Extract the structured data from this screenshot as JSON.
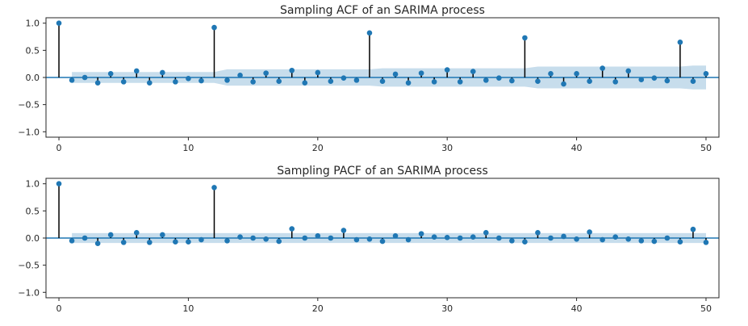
{
  "chart_data": [
    {
      "type": "stem",
      "title": "Sampling ACF of an SARIMA process",
      "xlabel": "",
      "ylabel": "",
      "xlim": [
        -1,
        51
      ],
      "ylim": [
        -1.1,
        1.1
      ],
      "xticks": [
        0,
        10,
        20,
        30,
        40,
        50
      ],
      "yticks": [
        1.0,
        0.5,
        0.0,
        -0.5,
        -1.0
      ],
      "ytick_labels": [
        "1.0",
        "0.5",
        "0.0",
        "−0.5",
        "−1.0"
      ],
      "x": [
        0,
        1,
        2,
        3,
        4,
        5,
        6,
        7,
        8,
        9,
        10,
        11,
        12,
        13,
        14,
        15,
        16,
        17,
        18,
        19,
        20,
        21,
        22,
        23,
        24,
        25,
        26,
        27,
        28,
        29,
        30,
        31,
        32,
        33,
        34,
        35,
        36,
        37,
        38,
        39,
        40,
        41,
        42,
        43,
        44,
        45,
        46,
        47,
        48,
        49,
        50
      ],
      "values": [
        1.0,
        -0.05,
        0.0,
        -0.1,
        0.07,
        -0.08,
        0.12,
        -0.1,
        0.09,
        -0.08,
        -0.02,
        -0.06,
        0.92,
        -0.05,
        0.04,
        -0.08,
        0.08,
        -0.07,
        0.13,
        -0.1,
        0.09,
        -0.07,
        -0.01,
        -0.05,
        0.82,
        -0.07,
        0.06,
        -0.1,
        0.08,
        -0.08,
        0.14,
        -0.08,
        0.11,
        -0.05,
        -0.01,
        -0.06,
        0.73,
        -0.07,
        0.07,
        -0.12,
        0.07,
        -0.07,
        0.17,
        -0.08,
        0.12,
        -0.04,
        -0.01,
        -0.06,
        0.65,
        -0.07,
        0.07
      ],
      "conf_band": [
        0.0,
        0.1,
        0.1,
        0.1,
        0.1,
        0.1,
        0.1,
        0.1,
        0.1,
        0.1,
        0.1,
        0.1,
        0.1,
        0.15,
        0.15,
        0.15,
        0.15,
        0.15,
        0.15,
        0.15,
        0.15,
        0.15,
        0.15,
        0.15,
        0.15,
        0.17,
        0.17,
        0.17,
        0.17,
        0.17,
        0.17,
        0.17,
        0.17,
        0.17,
        0.17,
        0.17,
        0.17,
        0.2,
        0.2,
        0.2,
        0.2,
        0.2,
        0.2,
        0.2,
        0.2,
        0.2,
        0.2,
        0.2,
        0.2,
        0.22,
        0.22
      ],
      "colors": {
        "marker": "#1f77b4",
        "stem": "#000000",
        "band": "#1f77b4",
        "zero_line": "#1f77b4"
      }
    },
    {
      "type": "stem",
      "title": "Sampling PACF of an SARIMA process",
      "xlabel": "",
      "ylabel": "",
      "xlim": [
        -1,
        51
      ],
      "ylim": [
        -1.1,
        1.1
      ],
      "xticks": [
        0,
        10,
        20,
        30,
        40,
        50
      ],
      "yticks": [
        1.0,
        0.5,
        0.0,
        -0.5,
        -1.0
      ],
      "ytick_labels": [
        "1.0",
        "0.5",
        "0.0",
        "−0.5",
        "−1.0"
      ],
      "x": [
        0,
        1,
        2,
        3,
        4,
        5,
        6,
        7,
        8,
        9,
        10,
        11,
        12,
        13,
        14,
        15,
        16,
        17,
        18,
        19,
        20,
        21,
        22,
        23,
        24,
        25,
        26,
        27,
        28,
        29,
        30,
        31,
        32,
        33,
        34,
        35,
        36,
        37,
        38,
        39,
        40,
        41,
        42,
        43,
        44,
        45,
        46,
        47,
        48,
        49,
        50
      ],
      "values": [
        1.0,
        -0.05,
        0.0,
        -0.1,
        0.06,
        -0.08,
        0.1,
        -0.08,
        0.06,
        -0.07,
        -0.07,
        -0.03,
        0.93,
        -0.05,
        0.02,
        0.0,
        -0.02,
        -0.06,
        0.17,
        0.0,
        0.04,
        0.0,
        0.14,
        -0.03,
        -0.02,
        -0.06,
        0.04,
        -0.03,
        0.08,
        0.02,
        0.01,
        0.0,
        0.02,
        0.1,
        0.0,
        -0.05,
        -0.07,
        0.1,
        0.0,
        0.03,
        -0.02,
        0.11,
        -0.03,
        0.02,
        -0.02,
        -0.05,
        -0.06,
        0.0,
        -0.07,
        0.16,
        -0.08
      ],
      "conf_band": [
        0.0,
        0.09,
        0.09,
        0.09,
        0.09,
        0.09,
        0.09,
        0.09,
        0.09,
        0.09,
        0.09,
        0.09,
        0.09,
        0.09,
        0.09,
        0.09,
        0.09,
        0.09,
        0.09,
        0.09,
        0.09,
        0.09,
        0.09,
        0.09,
        0.09,
        0.09,
        0.09,
        0.09,
        0.09,
        0.09,
        0.09,
        0.09,
        0.09,
        0.09,
        0.09,
        0.09,
        0.09,
        0.09,
        0.09,
        0.09,
        0.09,
        0.09,
        0.09,
        0.09,
        0.09,
        0.09,
        0.09,
        0.09,
        0.09,
        0.09,
        0.09
      ],
      "colors": {
        "marker": "#1f77b4",
        "stem": "#000000",
        "band": "#1f77b4",
        "zero_line": "#1f77b4"
      }
    }
  ]
}
